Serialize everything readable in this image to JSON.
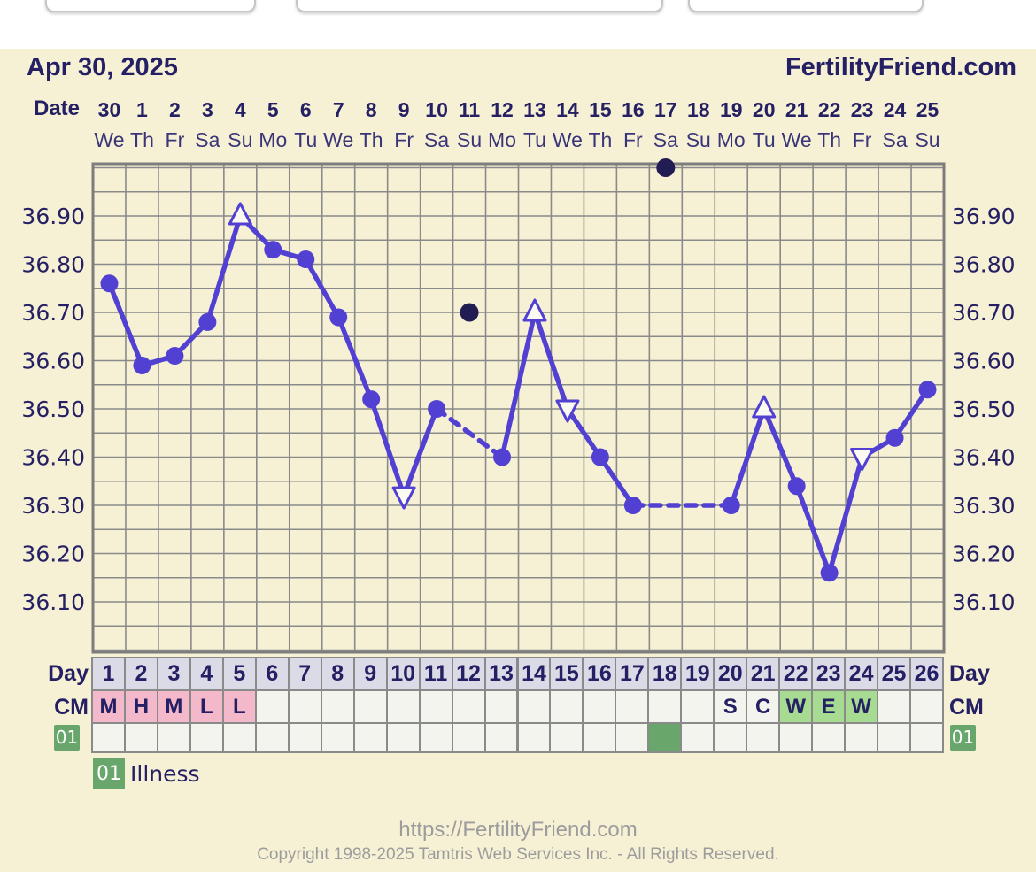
{
  "header": {
    "date_label": "Apr 30, 2025",
    "brand": "FertilityFriend.com"
  },
  "chart_data": {
    "type": "line",
    "x_axis": {
      "label": "Date",
      "dates": [
        "30",
        "1",
        "2",
        "3",
        "4",
        "5",
        "6",
        "7",
        "8",
        "9",
        "10",
        "11",
        "12",
        "13",
        "14",
        "15",
        "16",
        "17",
        "18",
        "19",
        "20",
        "21",
        "22",
        "23",
        "24",
        "25"
      ],
      "weekdays": [
        "We",
        "Th",
        "Fr",
        "Sa",
        "Su",
        "Mo",
        "Tu",
        "We",
        "Th",
        "Fr",
        "Sa",
        "Su",
        "Mo",
        "Tu",
        "We",
        "Th",
        "Fr",
        "Sa",
        "Su",
        "Mo",
        "Tu",
        "We",
        "Th",
        "Fr",
        "Sa",
        "Su"
      ]
    },
    "y_axis": {
      "min": 36.0,
      "max": 37.0,
      "grid_step": 0.05,
      "label_min": 36.1,
      "label_max": 36.9,
      "label_step": 0.1,
      "unit": "Celsius"
    },
    "series": [
      {
        "name": "basal-body-temperature",
        "values": [
          36.76,
          36.59,
          36.61,
          36.68,
          36.9,
          36.83,
          36.81,
          36.69,
          36.52,
          36.32,
          36.5,
          null,
          36.4,
          36.7,
          36.5,
          36.4,
          36.3,
          null,
          null,
          36.3,
          36.5,
          36.34,
          36.16,
          36.4,
          36.44,
          36.54
        ],
        "markers": [
          "circle",
          "circle",
          "circle",
          "circle",
          "triangle-up",
          "circle",
          "circle",
          "circle",
          "circle",
          "triangle-down",
          "circle",
          null,
          "circle",
          "triangle-up",
          "triangle-down",
          "circle",
          "circle",
          null,
          null,
          "circle",
          "triangle-up",
          "circle",
          "circle",
          "triangle-down",
          "circle",
          "circle"
        ],
        "gap_style": "dashed"
      }
    ],
    "excluded_points": [
      {
        "day": 12,
        "value": 36.7
      },
      {
        "day": 18,
        "value": 37.0
      }
    ],
    "grid": true,
    "legend_position": "none"
  },
  "day_row": {
    "label": "Day",
    "days": [
      1,
      2,
      3,
      4,
      5,
      6,
      7,
      8,
      9,
      10,
      11,
      12,
      13,
      14,
      15,
      16,
      17,
      18,
      19,
      20,
      21,
      22,
      23,
      24,
      25,
      26
    ]
  },
  "cm_row": {
    "label": "CM",
    "entries": [
      {
        "day": 1,
        "code": "M",
        "bg": "pink"
      },
      {
        "day": 2,
        "code": "H",
        "bg": "pink"
      },
      {
        "day": 3,
        "code": "M",
        "bg": "pink"
      },
      {
        "day": 4,
        "code": "L",
        "bg": "pink"
      },
      {
        "day": 5,
        "code": "L",
        "bg": "pink"
      },
      {
        "day": 20,
        "code": "S",
        "bg": "plain"
      },
      {
        "day": 21,
        "code": "C",
        "bg": "plain"
      },
      {
        "day": 22,
        "code": "W",
        "bg": "green"
      },
      {
        "day": 23,
        "code": "E",
        "bg": "green"
      },
      {
        "day": 24,
        "code": "W",
        "bg": "green"
      }
    ]
  },
  "event_rows": [
    {
      "id": "01",
      "marked_days": [
        18
      ]
    }
  ],
  "legend": [
    {
      "id": "01",
      "label": "Illness"
    }
  ],
  "footer": {
    "url": "https://FertilityFriend.com",
    "copyright": "Copyright 1998-2025 Tamtris Web Services Inc. - All Rights Reserved."
  },
  "colors": {
    "cream": "#f6f1d5",
    "cream_bright": "#fbfaf0",
    "navy": "#252063",
    "navy_soft": "#3a3579",
    "accent_purple": "#5140d2",
    "dark_dot": "#211c52",
    "grid_gray": "#8a8a8a",
    "border_gray": "#7d7d7d",
    "pink": "#f3b8c9",
    "green_light": "#a7db91",
    "green_dark": "#69a66b",
    "footer_gray": "#9c9c9c"
  }
}
